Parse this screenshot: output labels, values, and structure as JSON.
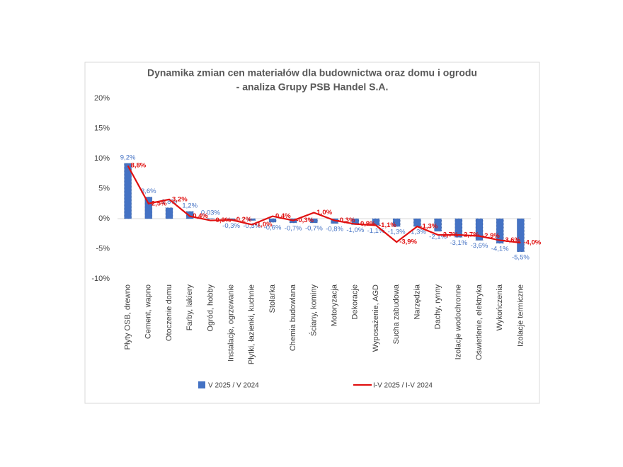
{
  "chart_data": {
    "type": "bar_line",
    "title": [
      "Dynamika zmian cen materiałów dla budownictwa oraz domu i ogrodu",
      "- analiza Grupy PSB Handel S.A."
    ],
    "categories": [
      "Płyty OSB, drewno",
      "Cement, wapno",
      "Otoczenie domu",
      "Farby, lakiery",
      "Ogród, hobby",
      "Instalacje, ogrzewanie",
      "Płytki, łazienki, kuchnie",
      "Stolarka",
      "Chemia budowlana",
      "Ściany, kominy",
      "Motoryzacja",
      "Dekoracje",
      "Wyposażenie, AGD",
      "Sucha zabudowa",
      "Narzędzia",
      "Dachy, rynny",
      "Izolacje wodochronne",
      "Oświetlenie, elektryka",
      "Wykończenia",
      "Izolacje termiczne"
    ],
    "series": [
      {
        "name": "V 2025 / V 2024",
        "color": "#4472c4",
        "kind": "bar",
        "values": [
          9.2,
          3.6,
          1.8,
          1.2,
          0.03,
          -0.3,
          -0.3,
          -0.6,
          -0.7,
          -0.7,
          -0.8,
          -1.0,
          -1.1,
          -1.3,
          -1.3,
          -2.1,
          -3.1,
          -3.6,
          -4.1,
          -5.5
        ],
        "value_labels": [
          "9,2%",
          "3,6%",
          "1,8%",
          "1,2%",
          "0,03%",
          "-0,3%",
          "-0,3%",
          "-0,6%",
          "-0,7%",
          "-0,7%",
          "-0,8%",
          "-1,0%",
          "-1,1%",
          "-1,3%",
          "-1,3%",
          "-2,1%",
          "-3,1%",
          "-3,6%",
          "-4,1%",
          "-5,5%"
        ]
      },
      {
        "name": "I-V 2025 / I-V 2024",
        "color": "#e01010",
        "kind": "line",
        "values": [
          8.8,
          2.5,
          3.2,
          0.4,
          -0.3,
          -0.2,
          -1.0,
          0.4,
          -0.3,
          1.0,
          -0.3,
          -0.9,
          -1.1,
          -3.9,
          -1.3,
          -2.7,
          -2.7,
          -2.9,
          -3.6,
          -4.0
        ],
        "value_labels": [
          "8,8%",
          "2,5%",
          "3,2%",
          "0,4%",
          "-0,3%",
          "-0,2%",
          "-1,0%",
          "0,4%",
          "-0,3%",
          "1,0%",
          "-0,3%",
          "-0,9%",
          "-1,1%",
          "-3,9%",
          "-1,3%",
          "-2,7%",
          "-2,7%",
          "-2,9%",
          "-3,6%",
          "-4,0%"
        ]
      }
    ],
    "ylim": [
      -10,
      20
    ],
    "yticks": [
      {
        "value": -10,
        "label": "-10%"
      },
      {
        "value": -5,
        "label": "-5%"
      },
      {
        "value": 0,
        "label": "0%"
      },
      {
        "value": 5,
        "label": "5%"
      },
      {
        "value": 10,
        "label": "10%"
      },
      {
        "value": 15,
        "label": "15%"
      },
      {
        "value": 20,
        "label": "20%"
      }
    ],
    "grid": false,
    "legend": "bottom"
  }
}
